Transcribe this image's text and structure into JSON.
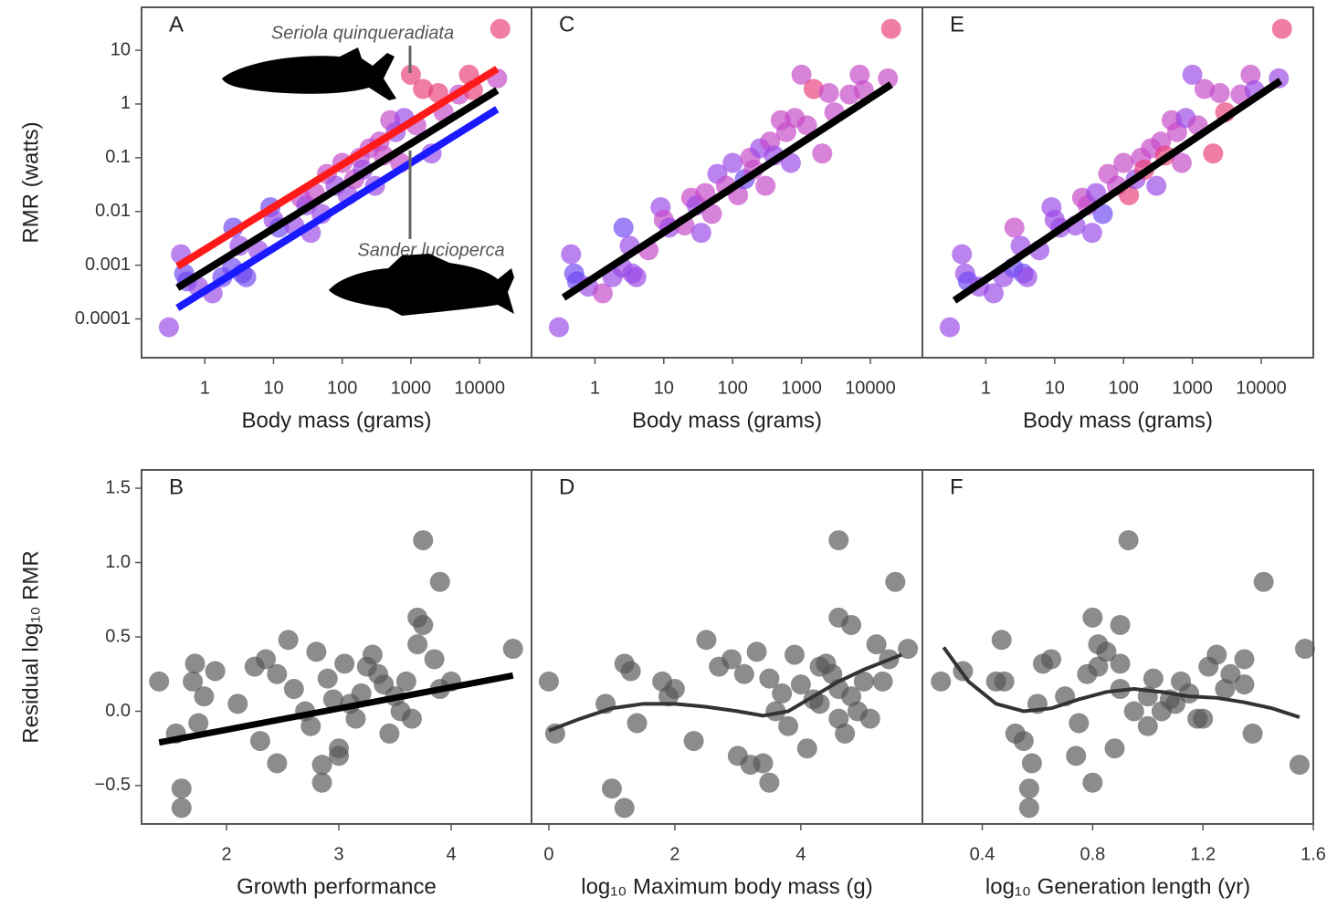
{
  "chart_data": [
    {
      "type": "scatter",
      "panel": "A",
      "xlabel": "Body mass (grams)",
      "ylabel": "RMR (watts)",
      "log_x": true,
      "log_y": true,
      "xlim": [
        0.12,
        57000
      ],
      "ylim": [
        1.9e-05,
        63
      ],
      "xticks": [
        1,
        10,
        100,
        1000,
        10000
      ],
      "yticks": [
        10,
        1,
        0.1,
        0.01,
        0.001,
        0.0001
      ],
      "x": [
        0.3,
        0.45,
        0.5,
        0.55,
        0.8,
        1.3,
        1.8,
        2.5,
        2.6,
        3.2,
        3.5,
        4,
        6,
        9,
        10,
        12,
        20,
        25,
        30,
        35,
        40,
        50,
        60,
        80,
        100,
        120,
        150,
        180,
        200,
        250,
        300,
        350,
        400,
        500,
        600,
        700,
        800,
        1000,
        1200,
        1500,
        2000,
        2500,
        3000,
        5000,
        7000,
        8000,
        18000,
        20000
      ],
      "values": [
        7e-05,
        0.0016,
        0.0007,
        0.0005,
        0.0004,
        0.0003,
        0.0006,
        0.0009,
        0.005,
        0.0023,
        0.0007,
        0.0006,
        0.0019,
        0.012,
        0.007,
        0.005,
        0.0055,
        0.018,
        0.013,
        0.004,
        0.022,
        0.009,
        0.05,
        0.03,
        0.08,
        0.02,
        0.04,
        0.1,
        0.06,
        0.15,
        0.03,
        0.2,
        0.11,
        0.5,
        0.3,
        0.08,
        0.55,
        3.5,
        0.4,
        1.9,
        0.12,
        1.6,
        0.7,
        1.5,
        3.5,
        1.8,
        3,
        25
      ],
      "colors": [
        "#9a48e6",
        "#9a48e6",
        "#6e48f2",
        "#6e48f2",
        "#9a48e6",
        "#9a48e6",
        "#6e48f2",
        "#6e48f2",
        "#6e48f2",
        "#9a48e6",
        "#6e48f2",
        "#6e48f2",
        "#9a48e6",
        "#6e48f2",
        "#9a48e6",
        "#6e48f2",
        "#9a48e6",
        "#c648c8",
        "#9a48e6",
        "#9a48e6",
        "#c648c8",
        "#9a48e6",
        "#c648c8",
        "#9a48e6",
        "#c648c8",
        "#9a48e6",
        "#c648c8",
        "#c648c8",
        "#9a48e6",
        "#c648c8",
        "#9a48e6",
        "#c648c8",
        "#c648c8",
        "#c648c8",
        "#9a48e6",
        "#c648c8",
        "#9a48e6",
        "#e8407a",
        "#c648c8",
        "#e8407a",
        "#9a48e6",
        "#e8407a",
        "#c648c8",
        "#c648c8",
        "#e8407a",
        "#e8407a",
        "#c648c8",
        "#e8407a"
      ],
      "lines": [
        {
          "color": "#ff1a1a",
          "x": [
            0.4,
            18000
          ],
          "values": [
            0.00095,
            4.5
          ]
        },
        {
          "color": "#000000",
          "x": [
            0.4,
            18000
          ],
          "values": [
            0.00038,
            1.8
          ]
        },
        {
          "color": "#1a1aff",
          "x": [
            0.4,
            18000
          ],
          "values": [
            0.00016,
            0.8
          ]
        }
      ],
      "annotations": [
        "Seriola quinqueradiata",
        "Sander lucioperca"
      ]
    },
    {
      "type": "scatter",
      "panel": "B",
      "xlabel": "Growth performance",
      "ylabel": "Residual log₁₀ RMR",
      "xlim": [
        1.244,
        4.715
      ],
      "ylim": [
        -0.758,
        1.623
      ],
      "xticks": [
        2,
        3,
        4
      ],
      "yticks": [
        1.5,
        {
          "value": 1.0,
          "label": "1.0"
        },
        0.5,
        {
          "value": 0.0,
          "label": "0.0"
        },
        {
          "value": -0.5,
          "label": "−0.5"
        }
      ],
      "x": [
        1.4,
        1.55,
        1.6,
        1.6,
        1.72,
        1.7,
        1.9,
        1.8,
        1.75,
        2.25,
        2.55,
        2.35,
        2.45,
        2.3,
        2.45,
        2.6,
        2.7,
        2.8,
        2.75,
        2.9,
        2.95,
        3.0,
        2.85,
        3.1,
        3.05,
        3.2,
        3.15,
        3.3,
        3.35,
        3.4,
        3.45,
        3.25,
        3.5,
        3.0,
        3.55,
        3.6,
        3.65,
        3.7,
        3.9,
        3.7,
        3.75,
        3.75,
        3.9,
        3.85,
        4.0,
        4.55,
        2.85,
        2.1
      ],
      "values": [
        0.2,
        -0.15,
        -0.52,
        -0.65,
        0.32,
        0.2,
        0.27,
        0.1,
        -0.08,
        0.3,
        0.48,
        0.35,
        0.25,
        -0.2,
        -0.35,
        0.15,
        0.0,
        0.4,
        -0.1,
        0.22,
        0.08,
        -0.3,
        -0.48,
        0.05,
        0.32,
        0.12,
        -0.05,
        0.38,
        0.25,
        0.18,
        -0.15,
        0.3,
        0.1,
        -0.25,
        0.0,
        0.2,
        -0.05,
        0.45,
        0.15,
        0.63,
        0.58,
        1.15,
        0.87,
        0.35,
        0.2,
        0.42,
        -0.36,
        0.05
      ],
      "color": "#555555",
      "lines": [
        {
          "color": "#000000",
          "x": [
            1.4,
            4.55
          ],
          "values": [
            -0.21,
            0.24
          ]
        }
      ]
    },
    {
      "type": "scatter",
      "panel": "C",
      "xlabel": "Body mass (grams)",
      "log_x": true,
      "log_y": true,
      "xlim": [
        0.12,
        57000
      ],
      "ylim": [
        1.9e-05,
        63
      ],
      "xticks": [
        1,
        10,
        100,
        1000,
        10000
      ],
      "x": [
        0.3,
        0.45,
        0.5,
        0.55,
        0.8,
        1.3,
        1.8,
        2.5,
        2.6,
        3.2,
        3.5,
        4,
        6,
        9,
        10,
        12,
        20,
        25,
        30,
        35,
        40,
        50,
        60,
        80,
        100,
        120,
        150,
        180,
        200,
        250,
        300,
        350,
        400,
        500,
        600,
        700,
        800,
        1000,
        1200,
        1500,
        2000,
        2500,
        3000,
        5000,
        7000,
        8000,
        18000,
        20000
      ],
      "values": [
        7e-05,
        0.0016,
        0.0007,
        0.0005,
        0.0004,
        0.0003,
        0.0006,
        0.0009,
        0.005,
        0.0023,
        0.0007,
        0.0006,
        0.0019,
        0.012,
        0.007,
        0.005,
        0.0055,
        0.018,
        0.013,
        0.004,
        0.022,
        0.009,
        0.05,
        0.03,
        0.08,
        0.02,
        0.04,
        0.1,
        0.06,
        0.15,
        0.03,
        0.2,
        0.11,
        0.5,
        0.3,
        0.08,
        0.55,
        3.5,
        0.4,
        1.9,
        0.12,
        1.6,
        0.7,
        1.5,
        3.5,
        1.8,
        3,
        25
      ],
      "colors": [
        "#9a48e6",
        "#9a48e6",
        "#6e48f2",
        "#6e48f2",
        "#9a48e6",
        "#c648c8",
        "#9a48e6",
        "#9a48e6",
        "#6e48f2",
        "#9a48e6",
        "#9a48e6",
        "#9a48e6",
        "#c648c8",
        "#9a48e6",
        "#c648c8",
        "#9a48e6",
        "#c648c8",
        "#c648c8",
        "#9a48e6",
        "#9a48e6",
        "#c648c8",
        "#c648c8",
        "#9a48e6",
        "#c648c8",
        "#9a48e6",
        "#c648c8",
        "#6e48f2",
        "#c648c8",
        "#c648c8",
        "#9a48e6",
        "#c648c8",
        "#c648c8",
        "#9a48e6",
        "#c648c8",
        "#c648c8",
        "#9a48e6",
        "#c648c8",
        "#c648c8",
        "#c648c8",
        "#e8407a",
        "#c648c8",
        "#c648c8",
        "#c648c8",
        "#c648c8",
        "#c648c8",
        "#c648c8",
        "#c648c8",
        "#e8407a"
      ],
      "lines": [
        {
          "color": "#000000",
          "x": [
            0.35,
            20000
          ],
          "values": [
            0.00025,
            2.3
          ]
        }
      ]
    },
    {
      "type": "scatter",
      "panel": "D",
      "xlabel": "log₁₀ Maximum body mass (g)",
      "xlim": [
        -0.275,
        5.93
      ],
      "ylim": [
        -0.758,
        1.623
      ],
      "xticks": [
        0,
        2,
        4
      ],
      "x": [
        0,
        0.1,
        1.0,
        1.2,
        1.2,
        1.8,
        1.3,
        1.9,
        1.4,
        2.7,
        2.5,
        2.9,
        3.1,
        2.3,
        3.4,
        2.0,
        3.6,
        3.3,
        3.8,
        3.5,
        4.2,
        3.0,
        3.5,
        4.3,
        4.4,
        3.7,
        4.6,
        3.9,
        4.5,
        4.0,
        4.7,
        4.3,
        4.8,
        4.1,
        4.9,
        5.0,
        5.1,
        5.2,
        4.6,
        4.6,
        4.8,
        4.6,
        5.5,
        5.4,
        5.3,
        5.7,
        3.2,
        0.9
      ],
      "values": [
        0.2,
        -0.15,
        -0.52,
        -0.65,
        0.32,
        0.2,
        0.27,
        0.1,
        -0.08,
        0.3,
        0.48,
        0.35,
        0.25,
        -0.2,
        -0.35,
        0.15,
        0.0,
        0.4,
        -0.1,
        0.22,
        0.08,
        -0.3,
        -0.48,
        0.05,
        0.32,
        0.12,
        -0.05,
        0.38,
        0.25,
        0.18,
        -0.15,
        0.3,
        0.1,
        -0.25,
        0.0,
        0.2,
        -0.05,
        0.45,
        0.15,
        0.63,
        0.58,
        1.15,
        0.87,
        0.35,
        0.2,
        0.42,
        -0.36,
        0.05
      ],
      "color": "#555555",
      "lines": [
        {
          "color": "#333333",
          "x": [
            0,
            0.5,
            1,
            1.5,
            2,
            2.5,
            3,
            3.4,
            3.8,
            4.2,
            4.6,
            5,
            5.6
          ],
          "values": [
            -0.13,
            -0.05,
            0.02,
            0.05,
            0.05,
            0.03,
            0.0,
            -0.03,
            0.0,
            0.1,
            0.2,
            0.28,
            0.38
          ]
        }
      ]
    },
    {
      "type": "scatter",
      "panel": "E",
      "xlabel": "Body mass (grams)",
      "log_x": true,
      "log_y": true,
      "xlim": [
        0.12,
        57000
      ],
      "ylim": [
        1.9e-05,
        63
      ],
      "xticks": [
        1,
        10,
        100,
        1000,
        10000
      ],
      "x": [
        0.3,
        0.45,
        0.5,
        0.55,
        0.8,
        1.3,
        1.8,
        2.5,
        2.6,
        3.2,
        3.5,
        4,
        6,
        9,
        10,
        12,
        20,
        25,
        30,
        35,
        40,
        50,
        60,
        80,
        100,
        120,
        150,
        180,
        200,
        250,
        300,
        350,
        400,
        500,
        600,
        700,
        800,
        1000,
        1200,
        1500,
        2000,
        2500,
        3000,
        5000,
        7000,
        8000,
        18000,
        20000
      ],
      "values": [
        7e-05,
        0.0016,
        0.0007,
        0.0005,
        0.0004,
        0.0003,
        0.0006,
        0.0009,
        0.005,
        0.0023,
        0.0007,
        0.0006,
        0.0019,
        0.012,
        0.007,
        0.005,
        0.0055,
        0.018,
        0.013,
        0.004,
        0.022,
        0.009,
        0.05,
        0.03,
        0.08,
        0.02,
        0.04,
        0.1,
        0.06,
        0.15,
        0.03,
        0.2,
        0.11,
        0.5,
        0.3,
        0.08,
        0.55,
        3.5,
        0.4,
        1.9,
        0.12,
        1.6,
        0.7,
        1.5,
        3.5,
        1.8,
        3,
        25
      ],
      "colors": [
        "#9a48e6",
        "#9a48e6",
        "#9a48e6",
        "#6e48f2",
        "#9a48e6",
        "#9a48e6",
        "#9a48e6",
        "#6e48f2",
        "#c648c8",
        "#9a48e6",
        "#6e48f2",
        "#9a48e6",
        "#9a48e6",
        "#9a48e6",
        "#9a48e6",
        "#9a48e6",
        "#9a48e6",
        "#c648c8",
        "#c648c8",
        "#9a48e6",
        "#9a48e6",
        "#6e48f2",
        "#c648c8",
        "#c648c8",
        "#c648c8",
        "#e8407a",
        "#9a48e6",
        "#c648c8",
        "#e8407a",
        "#c648c8",
        "#9a48e6",
        "#c648c8",
        "#e8407a",
        "#c648c8",
        "#c648c8",
        "#c648c8",
        "#9a48e6",
        "#9a48e6",
        "#c648c8",
        "#c648c8",
        "#e8407a",
        "#c648c8",
        "#e8407a",
        "#c648c8",
        "#c648c8",
        "#9a48e6",
        "#9a48e6",
        "#e8407a"
      ],
      "lines": [
        {
          "color": "#000000",
          "x": [
            0.35,
            19000
          ],
          "values": [
            0.00022,
            2.7
          ]
        }
      ]
    },
    {
      "type": "scatter",
      "panel": "F",
      "xlabel": "log₁₀ Generation length (yr)",
      "xlim": [
        0.183,
        1.6
      ],
      "ylim": [
        -0.758,
        1.623
      ],
      "xticks": [
        0.4,
        0.8,
        1.2,
        1.6
      ],
      "x": [
        0.25,
        0.52,
        0.57,
        0.57,
        0.62,
        0.48,
        0.33,
        0.7,
        0.75,
        0.82,
        0.47,
        0.65,
        0.78,
        0.55,
        0.58,
        0.9,
        0.95,
        0.85,
        1.0,
        1.02,
        1.08,
        0.74,
        0.8,
        1.1,
        0.9,
        1.15,
        1.2,
        1.25,
        1.3,
        1.35,
        1.38,
        1.22,
        1.0,
        0.88,
        1.05,
        1.12,
        1.18,
        0.82,
        1.28,
        0.8,
        0.9,
        0.93,
        1.42,
        1.35,
        0.45,
        1.57,
        1.55,
        0.6
      ],
      "values": [
        0.2,
        -0.15,
        -0.52,
        -0.65,
        0.32,
        0.2,
        0.27,
        0.1,
        -0.08,
        0.3,
        0.48,
        0.35,
        0.25,
        -0.2,
        -0.35,
        0.15,
        0.0,
        0.4,
        -0.1,
        0.22,
        0.08,
        -0.3,
        -0.48,
        0.05,
        0.32,
        0.12,
        -0.05,
        0.38,
        0.25,
        0.18,
        -0.15,
        0.3,
        0.1,
        -0.25,
        0.0,
        0.2,
        -0.05,
        0.45,
        0.15,
        0.63,
        0.58,
        1.15,
        0.87,
        0.35,
        0.2,
        0.42,
        -0.36,
        0.05
      ],
      "color": "#555555",
      "lines": [
        {
          "color": "#333333",
          "x": [
            0.26,
            0.35,
            0.45,
            0.55,
            0.65,
            0.75,
            0.85,
            0.95,
            1.05,
            1.15,
            1.25,
            1.35,
            1.45,
            1.55
          ],
          "values": [
            0.43,
            0.2,
            0.05,
            0.0,
            0.02,
            0.08,
            0.13,
            0.15,
            0.13,
            0.1,
            0.09,
            0.06,
            0.02,
            -0.04
          ]
        }
      ]
    }
  ]
}
